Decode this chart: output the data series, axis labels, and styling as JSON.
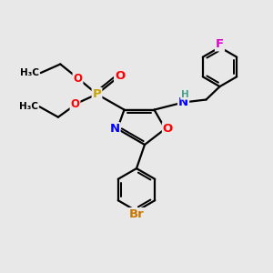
{
  "bg_color": "#e8e8e8",
  "bond_color": "#000000",
  "bond_width": 1.6,
  "atom_colors": {
    "C": "#000000",
    "H": "#4aa08a",
    "N": "#0000ff",
    "O": "#ff0000",
    "P": "#c8a000",
    "Br": "#c87800",
    "F": "#dd00cc"
  },
  "font_size": 8.5,
  "fig_size": [
    3.0,
    3.0
  ],
  "dpi": 100,
  "xlim": [
    0,
    10
  ],
  "ylim": [
    0,
    10
  ]
}
